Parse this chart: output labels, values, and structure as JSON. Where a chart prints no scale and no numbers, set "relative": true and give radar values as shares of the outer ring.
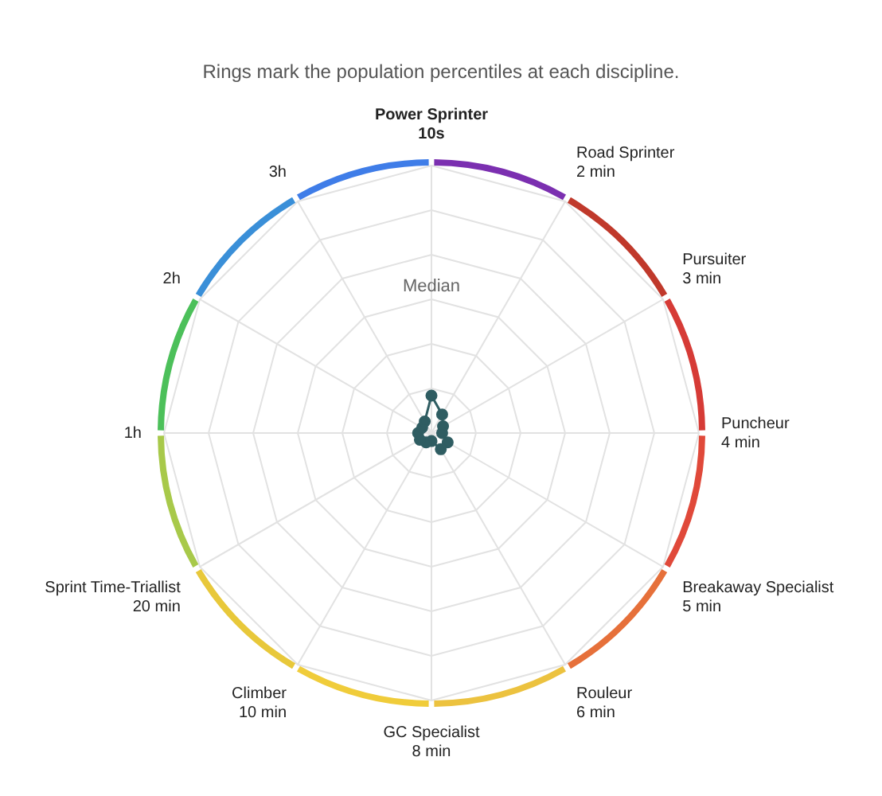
{
  "chart_data": {
    "type": "radar",
    "title": "Rings mark the population percentiles at each discipline.",
    "categories": [
      "Power Sprinter\n10s",
      "Road Sprinter\n2 min",
      "Pursuiter\n3 min",
      "Puncheur\n4 min",
      "Breakaway Specialist\n5 min",
      "Rouleur\n6 min",
      "GC Specialist\n8 min",
      "Climber\n10 min",
      "Sprint Time-Triallist\n20 min",
      "1h",
      "2h",
      "3h"
    ],
    "series": [
      {
        "color": "#2f5d62",
        "values": [
          0.14,
          0.08,
          0.05,
          0.04,
          0.07,
          0.07,
          0.03,
          0.04,
          0.05,
          0.05,
          0.04,
          0.05
        ]
      }
    ],
    "relative": true,
    "grid": true,
    "legend": false,
    "marker": "circle",
    "annotations": [
      "Median"
    ]
  }
}
